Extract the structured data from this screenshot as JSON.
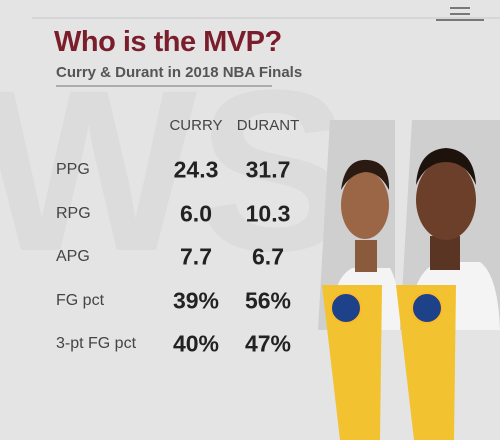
{
  "header": {
    "title": "Who is the MVP?",
    "subtitle": "Curry & Durant in 2018 NBA Finals"
  },
  "table": {
    "columns": [
      "CURRY",
      "DURANT"
    ],
    "rows": [
      [
        "PPG",
        "24.3",
        "31.7"
      ],
      [
        "RPG",
        "6.0",
        "10.3"
      ],
      [
        "APG",
        "7.7",
        "6.7"
      ],
      [
        "FG pct",
        "39%",
        "56%"
      ],
      [
        "3-pt FG pct",
        "40%",
        "47%"
      ]
    ]
  }
}
